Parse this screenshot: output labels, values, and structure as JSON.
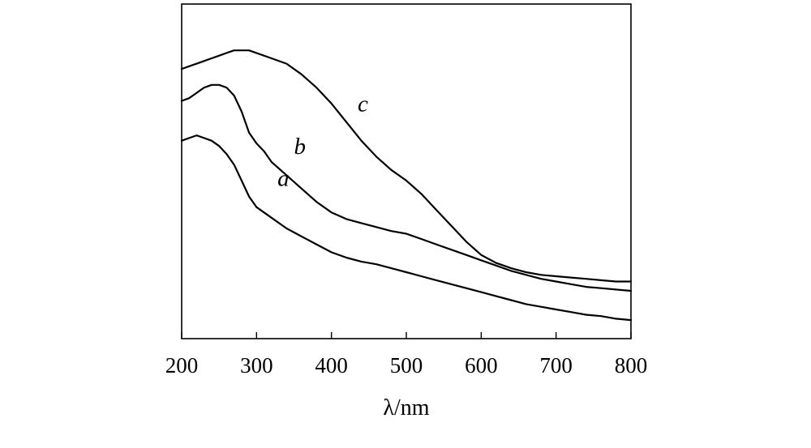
{
  "chart_data": {
    "type": "line",
    "title": "",
    "xlabel": "λ/nm",
    "ylabel": "",
    "xlim": [
      200,
      800
    ],
    "ylim": [
      0,
      1
    ],
    "xticks": [
      200,
      300,
      400,
      500,
      600,
      700,
      800
    ],
    "grid": false,
    "legend": "none",
    "series": [
      {
        "name": "a",
        "x": [
          200,
          210,
          220,
          230,
          240,
          250,
          260,
          270,
          280,
          290,
          300,
          320,
          340,
          360,
          380,
          400,
          420,
          440,
          460,
          480,
          500,
          520,
          540,
          560,
          580,
          600,
          620,
          640,
          660,
          680,
          700,
          720,
          740,
          760,
          780,
          800
        ],
        "y": [
          0.69,
          0.7,
          0.71,
          0.7,
          0.69,
          0.67,
          0.64,
          0.6,
          0.54,
          0.48,
          0.44,
          0.4,
          0.36,
          0.33,
          0.3,
          0.27,
          0.25,
          0.235,
          0.225,
          0.21,
          0.195,
          0.18,
          0.165,
          0.15,
          0.135,
          0.12,
          0.105,
          0.09,
          0.075,
          0.065,
          0.055,
          0.045,
          0.035,
          0.03,
          0.02,
          0.015
        ]
      },
      {
        "name": "b",
        "x": [
          200,
          210,
          220,
          230,
          240,
          250,
          260,
          270,
          280,
          290,
          300,
          310,
          320,
          340,
          360,
          380,
          400,
          420,
          440,
          460,
          480,
          500,
          520,
          540,
          560,
          580,
          600,
          620,
          640,
          660,
          680,
          700,
          720,
          740,
          760,
          780,
          800
        ],
        "y": [
          0.84,
          0.85,
          0.87,
          0.89,
          0.9,
          0.9,
          0.89,
          0.86,
          0.8,
          0.72,
          0.68,
          0.65,
          0.61,
          0.56,
          0.51,
          0.46,
          0.42,
          0.395,
          0.38,
          0.365,
          0.35,
          0.34,
          0.32,
          0.3,
          0.28,
          0.26,
          0.24,
          0.22,
          0.2,
          0.185,
          0.17,
          0.16,
          0.15,
          0.14,
          0.135,
          0.13,
          0.125
        ]
      },
      {
        "name": "c",
        "x": [
          200,
          210,
          220,
          230,
          240,
          250,
          260,
          270,
          280,
          290,
          300,
          320,
          340,
          360,
          380,
          400,
          420,
          440,
          460,
          480,
          500,
          520,
          540,
          560,
          580,
          600,
          620,
          640,
          660,
          680,
          700,
          720,
          740,
          760,
          780,
          800
        ],
        "y": [
          0.96,
          0.97,
          0.98,
          0.99,
          1.0,
          1.01,
          1.02,
          1.03,
          1.03,
          1.03,
          1.02,
          1.0,
          0.98,
          0.94,
          0.89,
          0.83,
          0.76,
          0.69,
          0.63,
          0.58,
          0.54,
          0.49,
          0.43,
          0.37,
          0.31,
          0.26,
          0.23,
          0.21,
          0.195,
          0.185,
          0.18,
          0.175,
          0.17,
          0.165,
          0.16,
          0.16
        ]
      }
    ],
    "annotations": [
      {
        "text": "a",
        "x": 328,
        "y": 0.52
      },
      {
        "text": "b",
        "x": 350,
        "y": 0.64
      },
      {
        "text": "c",
        "x": 435,
        "y": 0.8
      }
    ]
  }
}
